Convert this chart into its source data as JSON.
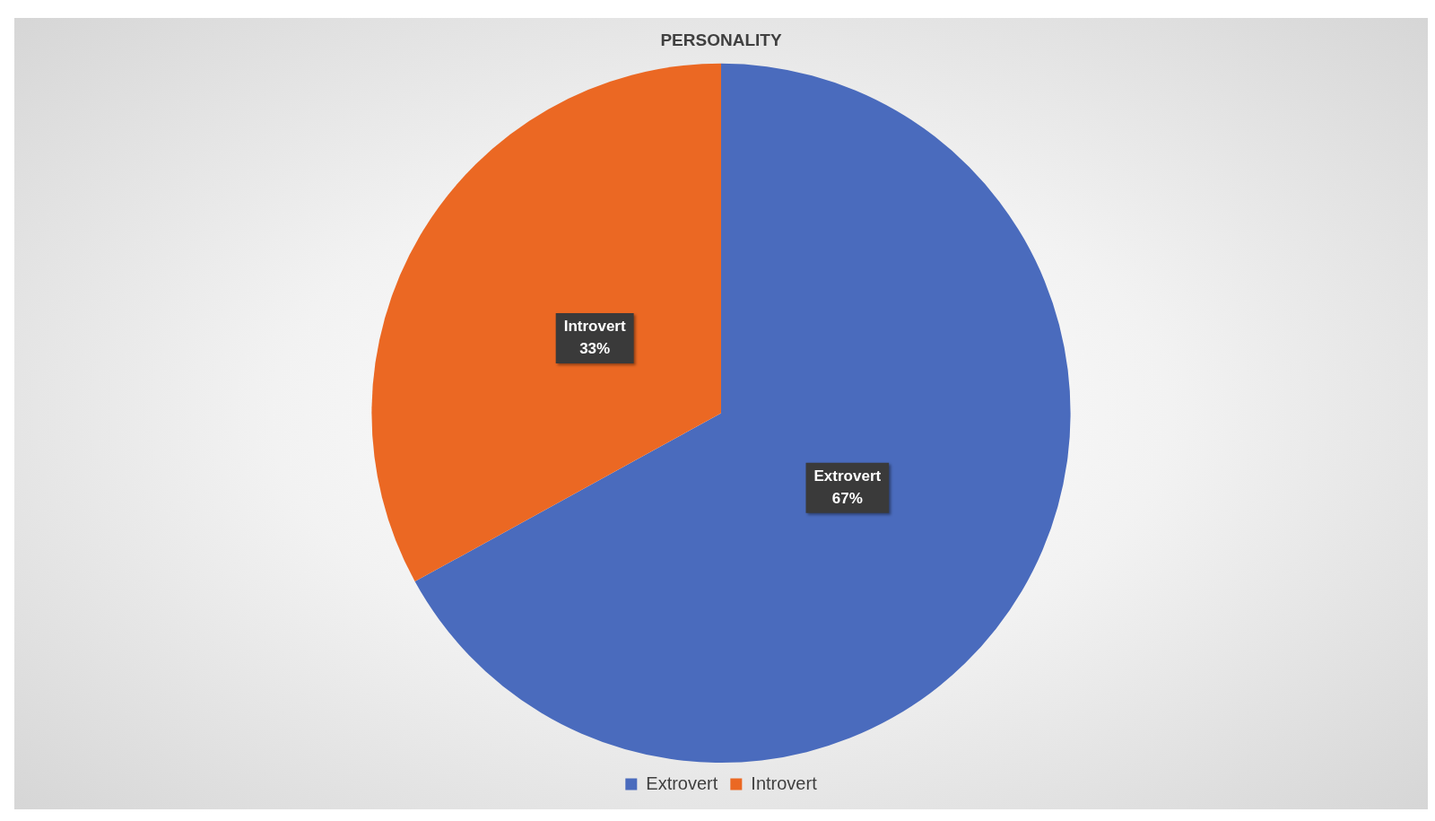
{
  "chart_data": {
    "type": "pie",
    "title": "PERSONALITY",
    "categories": [
      "Extrovert",
      "Introvert"
    ],
    "values": [
      67,
      33
    ],
    "colors": [
      "#4a6bbd",
      "#eb6823"
    ],
    "value_labels": [
      "67%",
      "33%"
    ],
    "legend": "bottom"
  }
}
